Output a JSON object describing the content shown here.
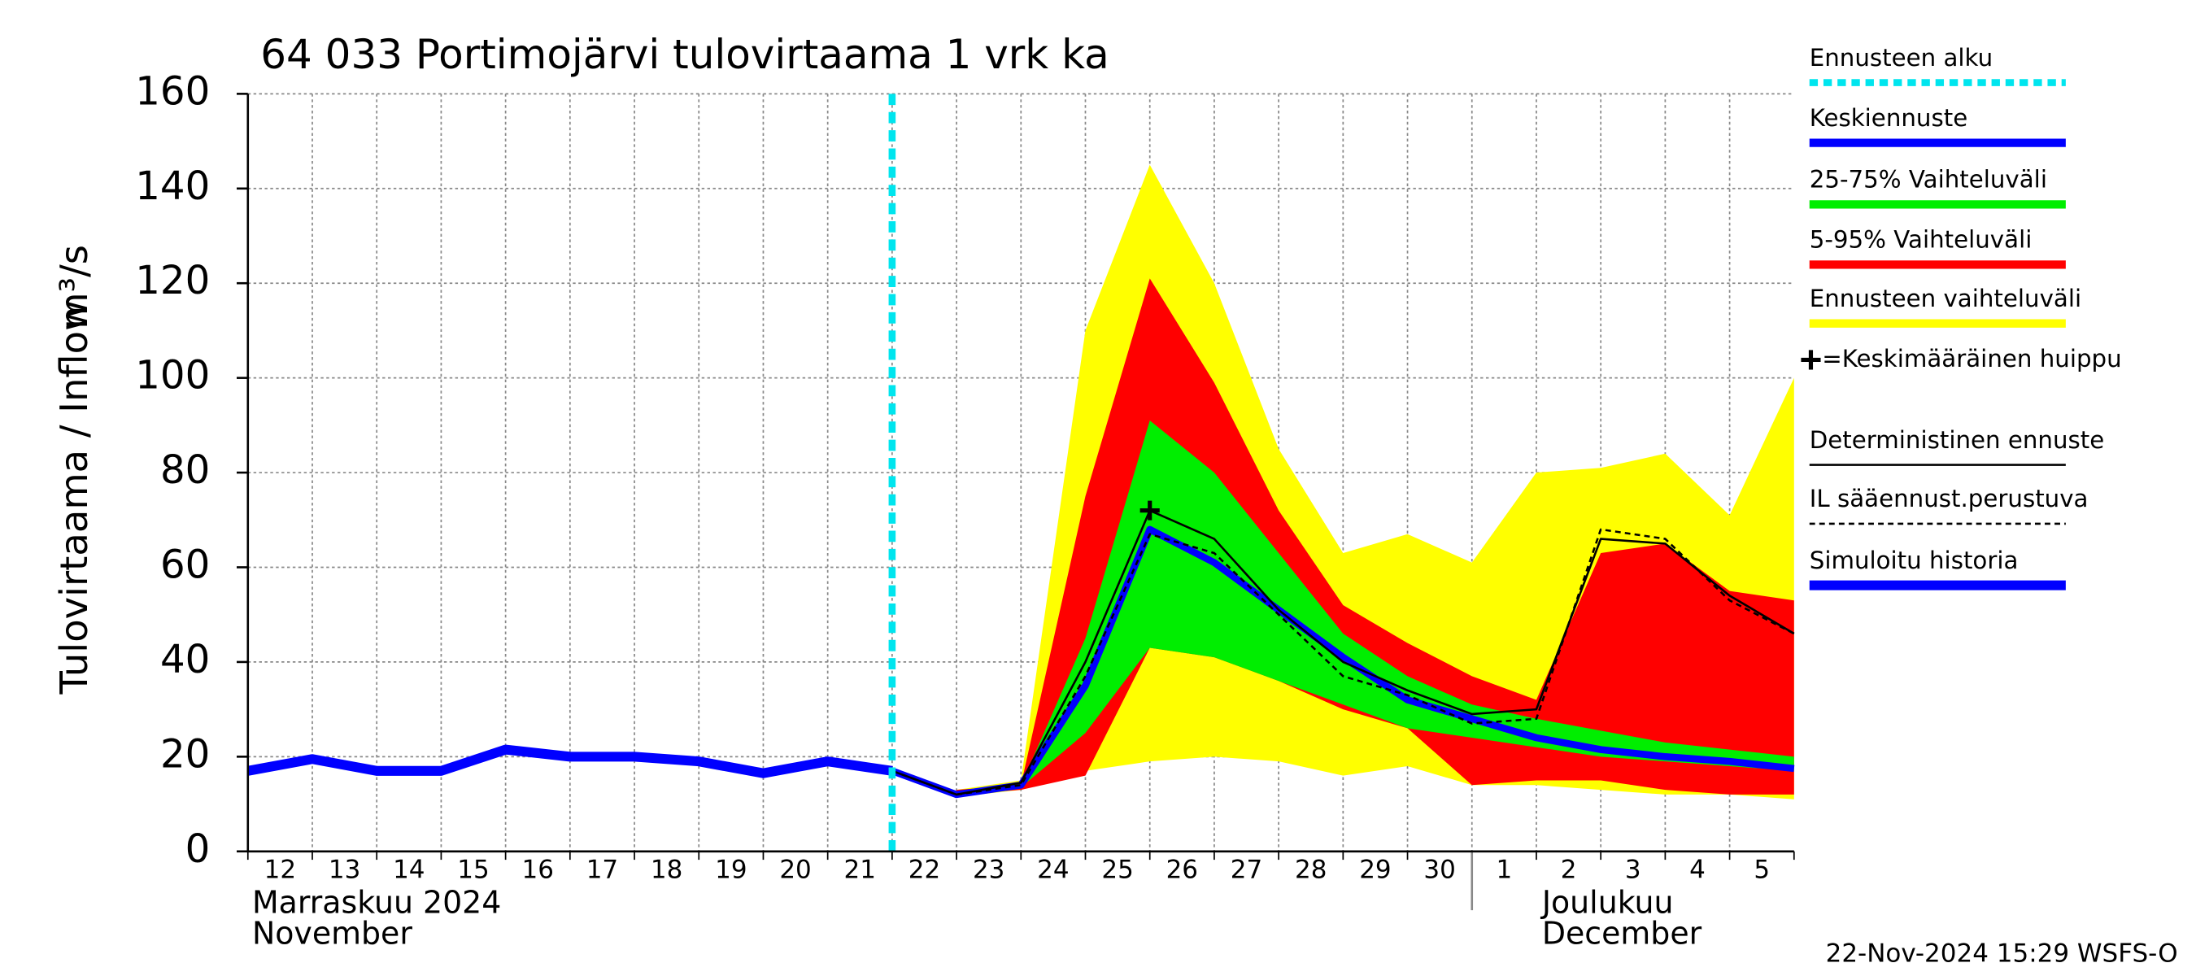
{
  "chart_data": {
    "type": "line",
    "title": "64 033 Portimojärvi tulovirtaama 1 vrk ka",
    "y_label": "Tulovirtaama / Inflow",
    "y_unit": "m³/s",
    "categories": [
      "12",
      "13",
      "14",
      "15",
      "16",
      "17",
      "18",
      "19",
      "20",
      "21",
      "22",
      "23",
      "24",
      "25",
      "26",
      "27",
      "28",
      "29",
      "30",
      "1",
      "2",
      "3",
      "4",
      "5",
      null
    ],
    "month_labels": [
      "Marraskuu 2024",
      "November",
      "Joulukuu",
      "December"
    ],
    "timestamp": "22-Nov-2024 15:29 WSFS-O",
    "ylim": [
      0,
      160
    ],
    "yticks": [
      0,
      20,
      40,
      60,
      80,
      100,
      120,
      140,
      160
    ],
    "grid": true,
    "forecast_start": {
      "name": "Ennusteen alku",
      "color": "#00e5ee"
    },
    "peak": {
      "name": "=Keskimääräinen huippu",
      "x": "26",
      "value": 72
    },
    "series": [
      {
        "name": "Keskiennuste",
        "kind": "line",
        "color": "#0000ff",
        "width": 5,
        "values": [
          null,
          null,
          null,
          null,
          null,
          null,
          null,
          null,
          null,
          null,
          17,
          12,
          14,
          35,
          68,
          61,
          51,
          41,
          32,
          28,
          24,
          21.5,
          20,
          19,
          17.5
        ]
      },
      {
        "name": "25-75% Vaihteluväli",
        "kind": "band",
        "color": "#00ee00",
        "lower": [
          null,
          null,
          null,
          null,
          null,
          null,
          null,
          null,
          null,
          null,
          null,
          12,
          13.5,
          25,
          43,
          41,
          36,
          31,
          26,
          24,
          22,
          20,
          19,
          18,
          17
        ],
        "upper": [
          null,
          null,
          null,
          null,
          null,
          null,
          null,
          null,
          null,
          null,
          null,
          12.5,
          14,
          45,
          91,
          80,
          63,
          46,
          37,
          31,
          28,
          25.5,
          23,
          21.5,
          20
        ]
      },
      {
        "name": "5-95% Vaihteluväli",
        "kind": "band",
        "color": "#ff0000",
        "lower": [
          null,
          null,
          null,
          null,
          null,
          null,
          null,
          null,
          null,
          null,
          null,
          12,
          13,
          16,
          43,
          41,
          36,
          30,
          26,
          14,
          15,
          15,
          13,
          12,
          12
        ],
        "upper": [
          null,
          null,
          null,
          null,
          null,
          null,
          null,
          null,
          null,
          null,
          null,
          13,
          14,
          75,
          121,
          99,
          72,
          52,
          44,
          37,
          32,
          63,
          65,
          55,
          53
        ]
      },
      {
        "name": "Ennusteen vaihteluväli",
        "kind": "band",
        "color": "#ffff00",
        "lower": [
          null,
          null,
          null,
          null,
          null,
          null,
          null,
          null,
          null,
          null,
          null,
          11.5,
          13,
          17,
          19,
          20,
          19,
          16,
          18,
          14,
          14,
          13,
          12,
          12,
          11
        ],
        "upper": [
          null,
          null,
          null,
          null,
          null,
          null,
          null,
          null,
          null,
          null,
          null,
          13,
          15,
          110,
          145,
          120,
          85,
          63,
          67,
          61,
          80,
          81,
          84,
          71,
          100
        ]
      },
      {
        "name": "Deterministinen ennuste",
        "kind": "line",
        "color": "#000000",
        "width": 1.5,
        "values": [
          null,
          null,
          null,
          null,
          null,
          null,
          null,
          null,
          null,
          null,
          17,
          12,
          14.5,
          40,
          72,
          66,
          51,
          40,
          34,
          29,
          30,
          66,
          65,
          54,
          46
        ]
      },
      {
        "name": "IL sääennust.perustuva",
        "kind": "line",
        "color": "#000000",
        "width": 1.5,
        "dash": true,
        "values": [
          null,
          null,
          null,
          null,
          null,
          null,
          null,
          null,
          null,
          null,
          17,
          12,
          14,
          37,
          67,
          63,
          50,
          37,
          33,
          27,
          28,
          68,
          66,
          53,
          46
        ]
      },
      {
        "name": "Simuloitu historia",
        "kind": "line",
        "color": "#0000ff",
        "width": 7,
        "values": [
          17,
          19.5,
          17,
          17,
          21.5,
          20,
          20,
          19,
          16.5,
          19,
          17,
          null,
          null,
          null,
          null,
          null,
          null,
          null,
          null,
          null,
          null,
          null,
          null,
          null,
          null
        ]
      }
    ]
  }
}
